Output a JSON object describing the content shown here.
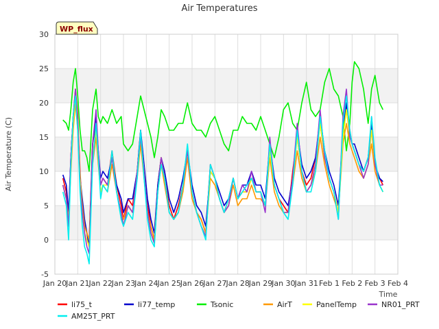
{
  "chart_data": {
    "type": "line",
    "title": "Air Temperatures",
    "xlabel": "Time",
    "ylabel": "Air Temperature (C)",
    "badge": "WP_flux",
    "xlim": [
      0,
      15
    ],
    "ylim": [
      -5,
      30
    ],
    "yticks": [
      -5,
      0,
      5,
      10,
      15,
      20,
      25,
      30
    ],
    "xtick_labels": [
      "Jan 20",
      "Jan 21",
      "Jan 22",
      "Jan 23",
      "Jan 24",
      "Jan 25",
      "Jan 26",
      "Jan 27",
      "Jan 28",
      "Jan 29",
      "Jan 30",
      "Jan 31",
      "Feb 1",
      "Feb 2",
      "Feb 3",
      "Feb 4"
    ],
    "grid": true,
    "legend_position": "bottom",
    "x": [
      0.35,
      0.5,
      0.6,
      0.7,
      0.8,
      0.9,
      1.0,
      1.1,
      1.2,
      1.3,
      1.4,
      1.5,
      1.65,
      1.8,
      1.9,
      2.0,
      2.1,
      2.3,
      2.5,
      2.7,
      2.9,
      3.0,
      3.2,
      3.4,
      3.6,
      3.75,
      3.9,
      4.05,
      4.2,
      4.35,
      4.5,
      4.65,
      4.8,
      5.0,
      5.2,
      5.4,
      5.6,
      5.8,
      6.0,
      6.2,
      6.4,
      6.6,
      6.8,
      7.0,
      7.2,
      7.4,
      7.6,
      7.8,
      8.0,
      8.2,
      8.4,
      8.6,
      8.8,
      9.0,
      9.2,
      9.4,
      9.6,
      9.8,
      10.0,
      10.2,
      10.4,
      10.6,
      10.8,
      11.0,
      11.2,
      11.4,
      11.6,
      11.8,
      12.0,
      12.2,
      12.4,
      12.6,
      12.75,
      12.9,
      13.0,
      13.1,
      13.3,
      13.5,
      13.7,
      13.85,
      14.0,
      14.2,
      14.35
    ],
    "series": [
      {
        "name": "li75_t",
        "color": "#ff0000",
        "values": [
          9,
          7,
          3,
          12,
          18,
          22,
          18,
          10,
          4,
          2,
          1,
          0,
          14,
          17,
          12,
          8,
          9,
          8,
          13,
          8,
          5,
          3,
          6,
          5,
          10,
          16,
          10,
          5,
          2,
          0,
          8,
          12,
          9,
          5,
          3,
          5,
          8,
          13,
          7,
          4,
          3,
          1,
          11,
          9,
          6,
          4,
          6,
          9,
          6,
          7,
          7,
          9,
          7,
          7,
          5,
          14,
          8,
          6,
          5,
          4,
          10,
          15,
          10,
          8,
          9,
          12,
          17,
          12,
          9,
          7,
          4,
          16,
          20,
          16,
          14,
          13,
          11,
          10,
          12,
          16,
          11,
          9,
          8
        ]
      },
      {
        "name": "li77_temp",
        "color": "#0000cc",
        "values": [
          9.5,
          8,
          4,
          12,
          18,
          21,
          17,
          9,
          6,
          3,
          1,
          -1,
          14,
          18,
          13,
          9,
          10,
          9,
          12,
          8,
          6,
          4,
          6,
          6,
          10,
          16,
          11,
          6,
          3,
          1,
          8,
          12,
          10,
          6,
          4,
          6,
          9,
          13,
          8,
          5,
          4,
          2,
          10,
          9,
          7,
          5,
          6,
          9,
          6,
          8,
          8,
          10,
          8,
          8,
          6,
          14,
          9,
          7,
          6,
          5,
          9,
          16,
          11,
          9,
          10,
          12,
          18,
          13,
          10,
          8,
          5,
          16,
          20,
          15,
          14,
          14,
          12,
          10,
          12,
          17,
          11,
          9,
          8.5
        ]
      },
      {
        "name": "Tsonic",
        "color": "#00ee00",
        "values": [
          17.5,
          17,
          16,
          19,
          23,
          25,
          21,
          16,
          13,
          13,
          12,
          10,
          19,
          22,
          18,
          17,
          18,
          17,
          19,
          17,
          18,
          14,
          13,
          14,
          18,
          21,
          19,
          17,
          15,
          12,
          15,
          19,
          18,
          16,
          16,
          17,
          17,
          20,
          17,
          16,
          16,
          15,
          17,
          18,
          16,
          14,
          13,
          16,
          16,
          18,
          17,
          17,
          16,
          18,
          16,
          14,
          12,
          15,
          19,
          20,
          17,
          16,
          20,
          23,
          19,
          18,
          19,
          23,
          25,
          22,
          21,
          18,
          13,
          17,
          23,
          26,
          25,
          22,
          17,
          22,
          24,
          20,
          19
        ]
      },
      {
        "name": "AirT",
        "color": "#ff9900",
        "values": [
          8,
          6,
          3,
          10,
          16,
          20,
          16,
          9,
          5,
          2,
          1,
          0,
          11,
          15,
          11,
          7,
          8,
          7,
          11,
          7,
          4,
          3,
          5,
          4,
          9,
          14,
          9,
          4,
          2,
          0,
          7,
          11,
          8,
          4,
          3,
          4,
          7,
          12,
          6,
          4,
          3,
          1,
          9,
          8,
          6,
          4,
          5,
          8,
          5,
          6,
          6,
          8,
          6,
          6,
          5,
          12,
          7,
          5,
          4,
          4,
          8,
          13,
          9,
          7,
          8,
          10,
          15,
          11,
          8,
          6,
          4,
          14,
          17,
          14,
          13,
          12,
          10,
          9,
          11,
          14,
          10,
          8,
          7
        ]
      },
      {
        "name": "PanelTemp",
        "color": "#ffff00",
        "values": [
          8,
          6,
          2,
          11,
          17,
          21,
          17,
          9,
          4,
          1,
          0,
          -1,
          12,
          16,
          12,
          7,
          8,
          8,
          12,
          7,
          4,
          2,
          5,
          4,
          10,
          15,
          10,
          4,
          1,
          -0.5,
          7,
          12,
          9,
          4,
          3,
          4,
          8,
          13,
          7,
          4,
          2,
          0.5,
          10,
          9,
          6,
          4,
          5,
          9,
          6,
          7,
          7,
          9,
          7,
          7,
          5,
          13,
          8,
          6,
          4,
          4,
          9,
          15,
          10,
          7,
          8,
          11,
          17,
          12,
          9,
          7,
          4,
          15,
          19,
          15,
          14,
          13,
          11,
          9,
          11,
          16,
          11,
          8,
          7
        ]
      },
      {
        "name": "NR01_PRT",
        "color": "#9933cc",
        "values": [
          8,
          6,
          2,
          12,
          18,
          22,
          17,
          8,
          4,
          1,
          -1,
          -2,
          14,
          19,
          13,
          8,
          9,
          8,
          12,
          7,
          4,
          2,
          5,
          4,
          10,
          15,
          10,
          4,
          1,
          -0.5,
          7,
          12,
          9,
          4,
          3,
          4,
          8,
          13,
          7,
          4,
          2,
          0.5,
          11,
          9,
          6,
          4,
          5,
          9,
          6,
          8,
          7,
          10,
          7,
          7,
          4,
          15,
          8,
          6,
          4,
          4,
          9,
          17,
          10,
          7,
          8,
          11,
          19,
          12,
          9,
          7,
          3,
          18,
          22,
          15,
          14,
          13,
          11,
          9,
          11,
          18,
          11,
          8,
          8
        ]
      },
      {
        "name": "AM25T_PRT",
        "color": "#00eeee",
        "values": [
          7,
          5,
          0,
          11,
          18,
          21,
          16,
          7,
          2,
          -1,
          -2,
          -3.5,
          11,
          17,
          12,
          6,
          8,
          7,
          13,
          7,
          3,
          2,
          4,
          3,
          9,
          16,
          9,
          3,
          0,
          -1,
          7,
          11,
          9,
          4,
          3,
          4,
          8,
          14,
          7,
          4,
          2,
          0,
          11,
          9,
          6,
          4,
          6,
          9,
          6,
          7,
          8,
          9,
          7,
          7,
          5,
          14,
          8,
          6,
          4,
          3,
          8,
          16,
          10,
          7,
          7,
          10,
          18,
          13,
          9,
          7,
          3,
          17,
          21,
          16,
          14,
          13,
          11,
          10,
          12,
          18,
          12,
          8,
          7
        ]
      }
    ]
  }
}
